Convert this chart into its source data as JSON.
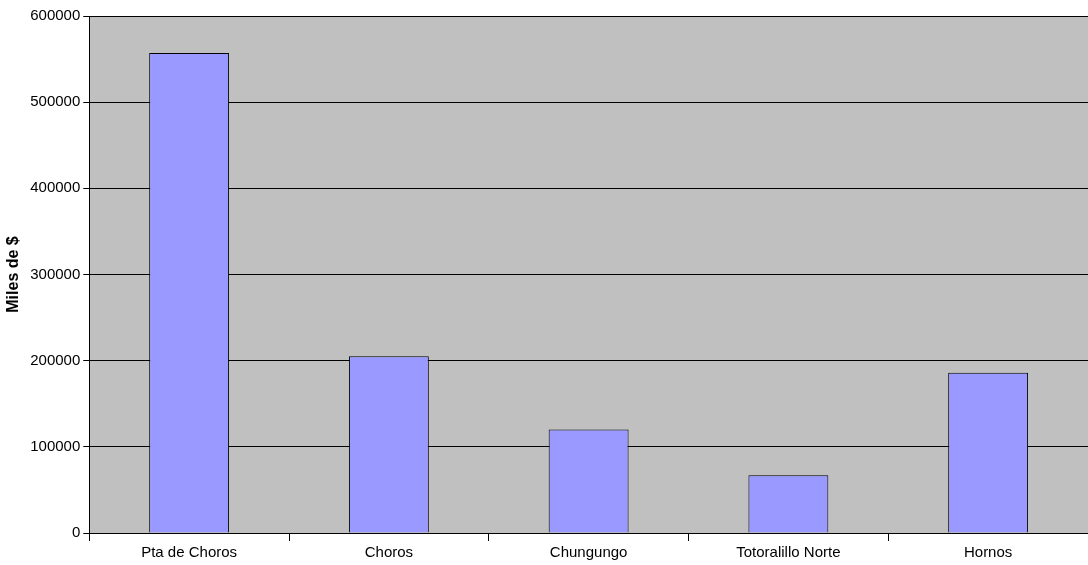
{
  "chart_data": {
    "type": "bar",
    "ylabel": "Miles de $",
    "categories": [
      "Pta de Choros",
      "Choros",
      "Chungungo",
      "Totoralillo Norte",
      "Hornos"
    ],
    "values": [
      557000,
      205000,
      120000,
      67000,
      186000
    ],
    "color": "#9999ff",
    "ylim": [
      0,
      600000
    ],
    "yticks": [
      0,
      100000,
      200000,
      300000,
      400000,
      500000,
      600000
    ],
    "grid": "y"
  }
}
